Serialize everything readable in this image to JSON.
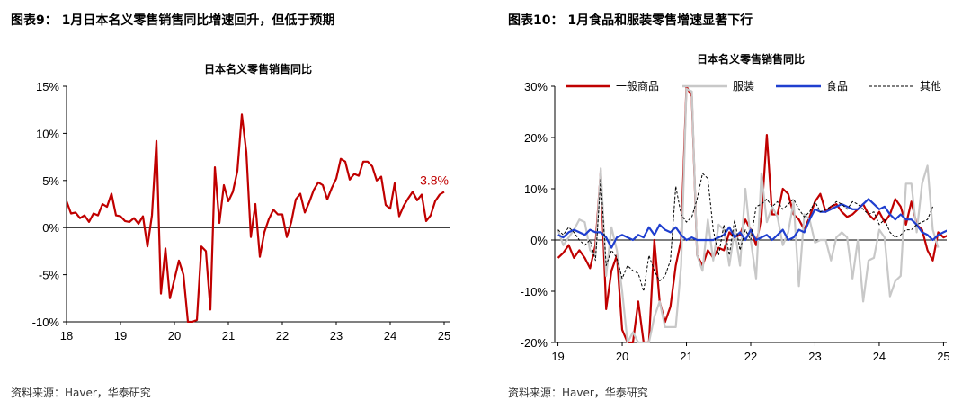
{
  "figures": [
    {
      "heading": "图表9：  1月日本名义零售销售同比增速回升，但低于预期",
      "source": "资料来源：Haver，华泰研究"
    },
    {
      "heading": "图表10：  1月食品和服装零售增速显著下行",
      "source": "资料来源：Haver，华泰研究"
    }
  ],
  "chart_data": [
    {
      "type": "line",
      "title": "日本名义零售销售同比",
      "x_start": 2018.0,
      "x_step": 0.0833333,
      "xlim": [
        2018.0,
        2025.1
      ],
      "ylim": [
        -10,
        15
      ],
      "y_ticks": [
        -10,
        -5,
        0,
        5,
        10,
        15
      ],
      "y_tick_labels": [
        "-10%",
        "-5%",
        "0%",
        "5%",
        "10%",
        "15%"
      ],
      "x_ticks": [
        2018,
        2019,
        2020,
        2021,
        2022,
        2023,
        2024,
        2025
      ],
      "x_tick_labels": [
        "18",
        "19",
        "20",
        "21",
        "22",
        "23",
        "24",
        "25"
      ],
      "annotation": "3.8%",
      "series": [
        {
          "color": "#c00000",
          "values": [
            2.8,
            1.5,
            1.6,
            1.0,
            1.3,
            0.6,
            1.5,
            1.3,
            2.5,
            2.2,
            3.6,
            1.3,
            1.2,
            0.7,
            0.6,
            1.0,
            0.4,
            1.2,
            -2.0,
            1.3,
            9.2,
            -7.0,
            -2.2,
            -7.5,
            -5.5,
            -3.5,
            -5.0,
            -10.0,
            -10.0,
            -9.8,
            -2.0,
            -2.5,
            -8.7,
            6.4,
            0.5,
            4.5,
            2.8,
            3.8,
            6.0,
            12.0,
            8.0,
            -1.0,
            2.5,
            -3.1,
            -0.5,
            0.9,
            1.9,
            1.4,
            1.4,
            -1.0,
            0.6,
            3.0,
            3.6,
            1.6,
            2.7,
            4.0,
            4.8,
            4.5,
            3.0,
            4.2,
            5.2,
            7.3,
            7.0,
            5.1,
            5.7,
            5.5,
            7.0,
            7.0,
            6.5,
            5.0,
            5.4,
            2.4,
            2.0,
            4.7,
            1.2,
            2.3,
            3.1,
            3.8,
            2.9,
            3.5,
            0.7,
            1.3,
            2.8,
            3.5,
            3.8
          ]
        }
      ]
    },
    {
      "type": "line",
      "title": "日本名义零售销售同比",
      "x_start": 2019.0,
      "x_step": 0.0833333,
      "xlim": [
        2018.95,
        2025.05
      ],
      "ylim": [
        -20,
        30
      ],
      "y_ticks": [
        -20,
        -10,
        0,
        10,
        20,
        30
      ],
      "y_tick_labels": [
        "-20%",
        "-10%",
        "0%",
        "10%",
        "20%",
        "30%"
      ],
      "x_ticks": [
        2019,
        2020,
        2021,
        2022,
        2023,
        2024,
        2025
      ],
      "x_tick_labels": [
        "19",
        "20",
        "21",
        "22",
        "23",
        "24",
        "25"
      ],
      "legend_position": "top",
      "series": [
        {
          "name": "一般商品",
          "color": "#c00000",
          "style": "solid",
          "values": [
            -3.5,
            -2.5,
            -1.0,
            -3.5,
            -2.0,
            -3.5,
            -5.5,
            -1.0,
            13.5,
            -13.5,
            -6.0,
            -3.0,
            -17.5,
            -20.0,
            -20.0,
            -12.0,
            -20.0,
            -20.0,
            0.0,
            -12.0,
            -16.0,
            -13.0,
            -5.0,
            0.0,
            30.0,
            28.0,
            -3.0,
            -5.0,
            -2.0,
            -3.5,
            -1.5,
            -2.0,
            1.5,
            0.5,
            1.0,
            4.0,
            2.0,
            -1.0,
            4.5,
            20.5,
            5.0,
            5.0,
            10.0,
            9.0,
            5.0,
            4.0,
            2.0,
            4.5,
            7.5,
            9.0,
            5.5,
            6.5,
            7.0,
            5.5,
            4.5,
            5.0,
            6.0,
            7.0,
            5.0,
            4.0,
            5.5,
            3.5,
            5.0,
            8.0,
            6.5,
            3.0,
            7.5,
            3.0,
            2.0,
            -2.0,
            -4.0,
            1.5,
            0.5,
            1.0
          ]
        },
        {
          "name": "服装",
          "color": "#c8c8c8",
          "style": "solid",
          "values": [
            2.0,
            -1.0,
            0.5,
            2.0,
            4.0,
            3.5,
            -2.0,
            -3.0,
            14.0,
            -7.0,
            2.5,
            -2.0,
            -10.0,
            -20.0,
            -18.0,
            -20.0,
            -20.0,
            -20.0,
            -15.0,
            -12.0,
            -17.0,
            -17.0,
            -17.0,
            -5.0,
            29.5,
            29.0,
            -3.0,
            -6.0,
            4.0,
            -4.0,
            3.0,
            2.0,
            -5.0,
            2.0,
            -5.0,
            10.0,
            0.0,
            -7.5,
            13.0,
            3.5,
            6.5,
            4.5,
            -1.0,
            1.5,
            7.5,
            -9.0,
            5.0,
            4.0,
            -0.5,
            0.0,
            0.0,
            -4.0,
            0.5,
            1.5,
            0.5,
            -7.5,
            0.0,
            -12.0,
            -4.0,
            -3.5,
            2.0,
            0.5,
            -11.0,
            -8.0,
            -7.0,
            11.0,
            11.0,
            1.5,
            11.0,
            14.5,
            2.0,
            -1.5
          ]
        },
        {
          "name": "食品",
          "color": "#1f3fcf",
          "style": "solid",
          "values": [
            1.0,
            0.5,
            1.5,
            2.0,
            1.5,
            1.0,
            2.0,
            1.5,
            1.5,
            0.5,
            -1.5,
            0.5,
            1.0,
            0.5,
            0.0,
            1.0,
            0.5,
            2.5,
            1.0,
            3.0,
            2.0,
            1.5,
            2.5,
            1.0,
            0.0,
            0.5,
            0.0,
            0.0,
            0.0,
            0.0,
            0.5,
            1.0,
            2.5,
            0.5,
            1.5,
            0.0,
            2.0,
            0.0,
            0.5,
            1.0,
            0.0,
            1.0,
            2.0,
            0.0,
            0.5,
            2.0,
            1.5,
            4.0,
            6.0,
            5.5,
            5.5,
            6.0,
            6.5,
            7.0,
            6.5,
            6.0,
            6.0,
            7.0,
            8.0,
            7.0,
            6.0,
            6.5,
            5.0,
            4.0,
            5.0,
            4.0,
            4.0,
            3.0,
            1.5,
            1.0,
            0.0,
            1.0,
            1.5,
            2.0,
            1.0
          ]
        },
        {
          "name": "其他",
          "color": "#000000",
          "style": "dashed",
          "values": [
            2.0,
            1.0,
            2.5,
            1.5,
            0.0,
            -1.0,
            0.0,
            -4.0,
            12.0,
            -5.0,
            -2.0,
            -3.5,
            -7.5,
            -5.0,
            -6.0,
            -6.5,
            -10.0,
            -3.0,
            -6.0,
            -8.0,
            -7.0,
            -4.0,
            10.5,
            5.0,
            3.5,
            4.5,
            8.0,
            13.0,
            12.0,
            2.0,
            -3.0,
            3.0,
            -3.0,
            4.0,
            -2.0,
            2.0,
            0.0,
            6.5,
            7.0,
            8.0,
            6.5,
            7.5,
            6.0,
            7.0,
            8.0,
            6.0,
            4.5,
            5.5,
            7.5,
            5.5,
            6.0,
            6.5,
            7.5,
            7.0,
            6.0,
            7.5,
            7.0,
            6.0,
            5.0,
            5.5,
            3.0,
            4.0,
            1.5,
            0.5,
            1.0,
            2.0,
            2.0,
            3.0,
            3.5,
            4.0,
            6.5
          ]
        }
      ]
    }
  ]
}
